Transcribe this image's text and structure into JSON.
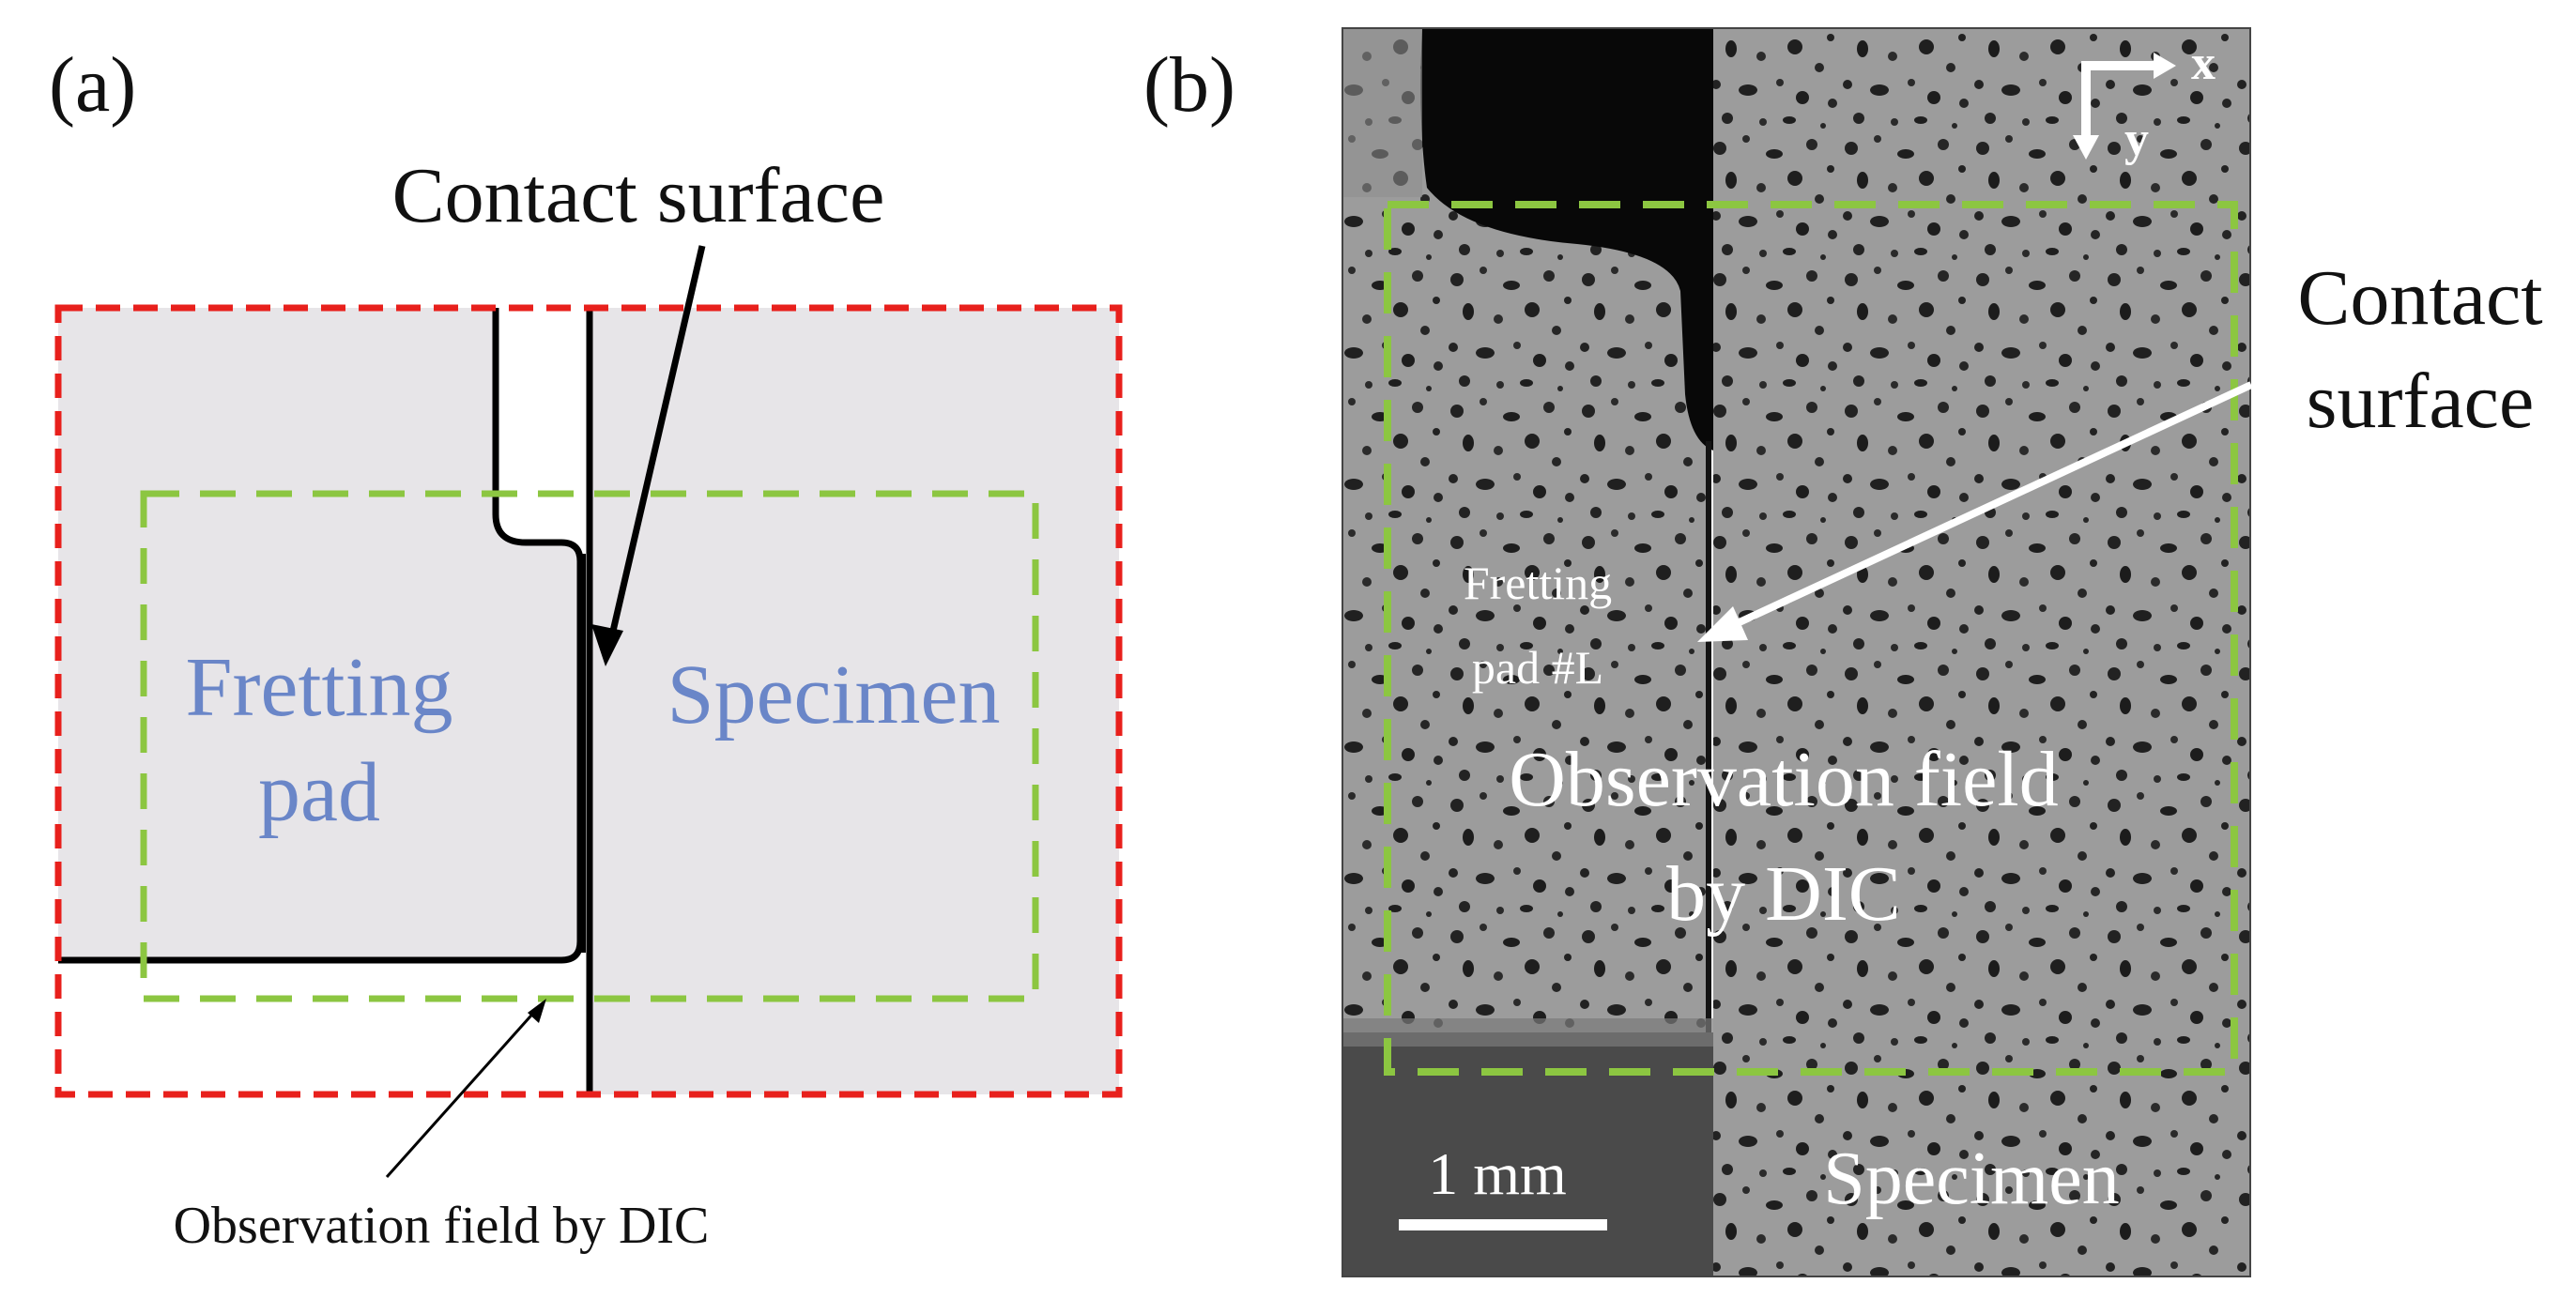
{
  "panel_a": {
    "label": "(a)",
    "contact_surface": "Contact surface",
    "fretting_pad_line1": "Fretting",
    "fretting_pad_line2": "pad",
    "specimen": "Specimen",
    "observation_field": "Observation field by DIC"
  },
  "panel_b": {
    "label": "(b)",
    "contact_line1": "Contact",
    "contact_line2": "surface",
    "fretting_pad_line1": "Fretting",
    "fretting_pad_line2": "pad #L",
    "observation_line1": "Observation field",
    "observation_line2": "by DIC",
    "specimen": "Specimen",
    "scale_bar": "1 mm",
    "axis_x": "x",
    "axis_y": "y"
  },
  "colors": {
    "outer_box": "#e8201c",
    "dic_box": "#8cc641",
    "region_fill": "#e7e5e8",
    "blue_text": "#6a86c8"
  }
}
